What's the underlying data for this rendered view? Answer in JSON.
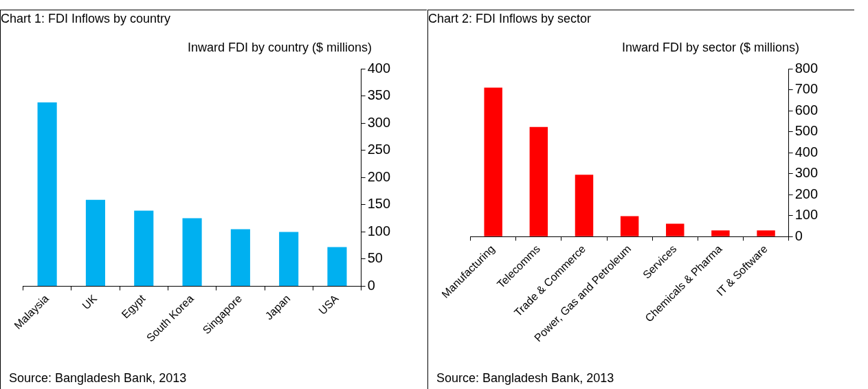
{
  "chart_data": [
    {
      "type": "bar",
      "title": "Chart 1: FDI Inflows by country",
      "subtitle": "Inward FDI by country ($ millions)",
      "categories": [
        "Malaysia",
        "UK",
        "Egypt",
        "South Korea",
        "Singapore",
        "Japan",
        "USA"
      ],
      "values": [
        338,
        159,
        139,
        125,
        105,
        100,
        72
      ],
      "color": "#00b0f0",
      "ylim": [
        0,
        400
      ],
      "yticks": [
        0,
        50,
        100,
        150,
        200,
        250,
        300,
        350,
        400
      ],
      "grid": false,
      "annotations": [
        "Source: Bangladesh Bank, 2013"
      ]
    },
    {
      "type": "bar",
      "title": "Chart 2: FDI Inflows by sector",
      "subtitle": "Inward FDI  by sector ($ millions)",
      "categories": [
        "Manufacturing",
        "Telecomms",
        "Trade & Commerce",
        "Power, Gas and Petroleum",
        "Services",
        "Chemicals & Pharma",
        "IT & Software"
      ],
      "values": [
        710,
        522,
        295,
        97,
        61,
        29,
        29
      ],
      "color": "#ff0000",
      "ylim": [
        0,
        800
      ],
      "yticks": [
        0,
        100,
        200,
        300,
        400,
        500,
        600,
        700,
        800
      ],
      "grid": false,
      "annotations": [
        "Source: Bangladesh Bank, 2013"
      ]
    }
  ]
}
